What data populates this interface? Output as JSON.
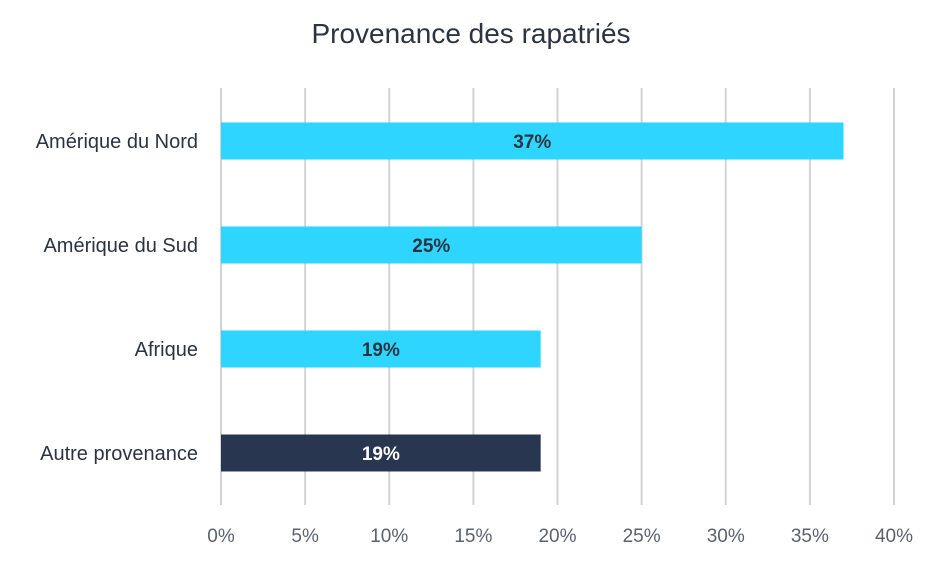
{
  "chart_data": {
    "type": "bar",
    "orientation": "horizontal",
    "title": "Provenance des rapatriés",
    "categories": [
      "Amérique du Nord",
      "Amérique du Sud",
      "Afrique",
      "Autre provenance"
    ],
    "values": [
      37,
      25,
      19,
      19
    ],
    "data_labels": [
      "37%",
      "25%",
      "19%",
      "19%"
    ],
    "xlim": [
      0,
      40
    ],
    "xticks": [
      0,
      5,
      10,
      15,
      20,
      25,
      30,
      35,
      40
    ],
    "xtick_labels": [
      "0%",
      "5%",
      "10%",
      "15%",
      "20%",
      "25%",
      "30%",
      "35%",
      "40%"
    ],
    "xlabel": "",
    "ylabel": "",
    "grid": "vertical",
    "legend": "none",
    "colors": {
      "bar": "#2ed6ff",
      "highlight_bar": "#283650",
      "label_on_light": "#2b3440",
      "label_on_dark": "#ffffff",
      "grid": "#d3d3d3"
    },
    "highlight_category": "Autre provenance"
  }
}
